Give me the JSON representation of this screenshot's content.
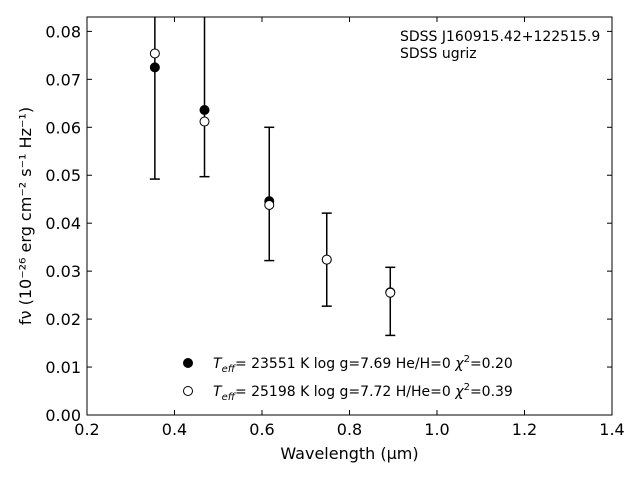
{
  "chart_data": {
    "type": "scatter",
    "xlabel": "Wavelength (μm)",
    "ylabel": "fν (10⁻²⁶ erg cm⁻² s⁻¹ Hz⁻¹)",
    "xlim": [
      0.2,
      1.4
    ],
    "ylim": [
      0.0,
      0.083
    ],
    "xticks": [
      0.2,
      0.4,
      0.6,
      0.8,
      1.0,
      1.2,
      1.4
    ],
    "xtick_labels": [
      "0.2",
      "0.4",
      "0.6",
      "0.8",
      "1.0",
      "1.2",
      "1.4"
    ],
    "yticks": [
      0.0,
      0.01,
      0.02,
      0.03,
      0.04,
      0.05,
      0.06,
      0.07,
      0.08
    ],
    "ytick_labels": [
      "0.00",
      "0.01",
      "0.02",
      "0.03",
      "0.04",
      "0.05",
      "0.06",
      "0.07",
      "0.08"
    ],
    "grid": false,
    "annotation": {
      "object": "SDSS J160915.42+122515.9",
      "photometry": "SDSS ugriz"
    },
    "observed": {
      "x": [
        0.3551,
        0.4686,
        0.6166,
        0.748,
        0.8932
      ],
      "y": [
        0.0725,
        0.0636,
        0.0446,
        0.0324,
        0.0256
      ],
      "err_low": [
        0.0492,
        0.0497,
        0.0322,
        0.0227,
        0.0166
      ],
      "err_high": [
        0.095,
        0.085,
        0.06,
        0.0421,
        0.0308
      ]
    },
    "series": [
      {
        "name": "Teff= 23551 K  log g=7.69  He/H=0  χ²=0.20",
        "marker": "filled",
        "x": [
          0.3551,
          0.4686,
          0.6166,
          0.748,
          0.8932
        ],
        "y": [
          0.0725,
          0.0636,
          0.0446,
          0.0324,
          0.0256
        ]
      },
      {
        "name": "Teff= 25198 K  log g=7.72  H/He=0  χ²=0.39",
        "marker": "open",
        "x": [
          0.3551,
          0.4686,
          0.6166,
          0.748,
          0.8932
        ],
        "y": [
          0.0754,
          0.0612,
          0.0438,
          0.0324,
          0.0255
        ]
      }
    ],
    "legend": {
      "placement": "lower-center",
      "entries": [
        {
          "teff_value": "= 23551 K",
          "rest": "log g=7.69  He/H=0",
          "chi_value": "=0.20"
        },
        {
          "teff_value": "= 25198 K",
          "rest": "log g=7.72  H/He=0",
          "chi_value": "=0.39"
        }
      ]
    },
    "colors": {
      "marker": "#000000",
      "axes": "#000000",
      "background": "#ffffff"
    }
  }
}
